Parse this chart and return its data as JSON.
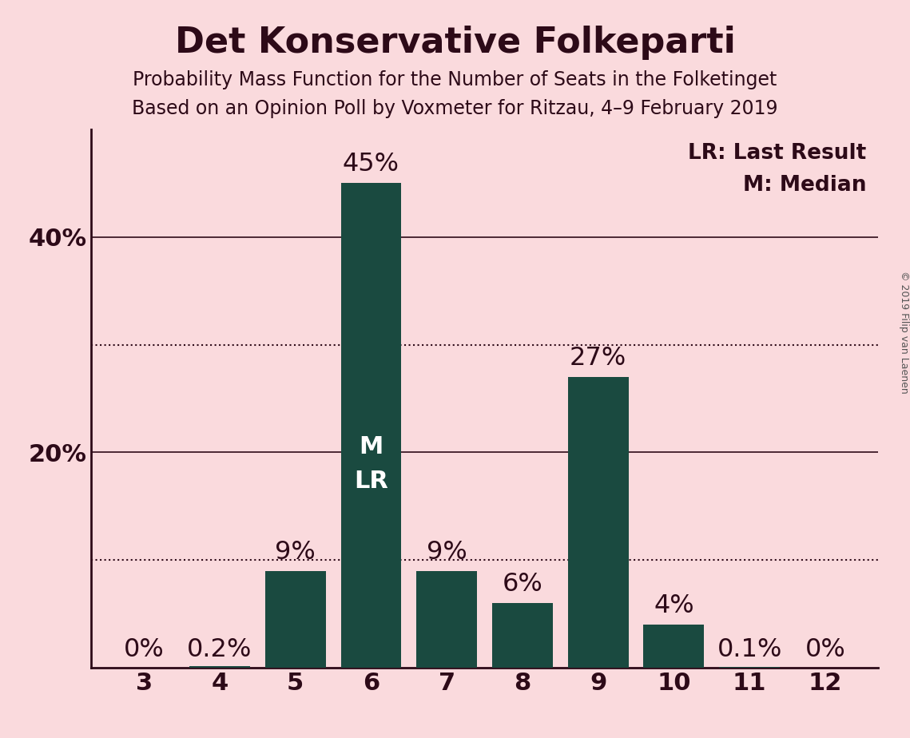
{
  "title": "Det Konservative Folkeparti",
  "subtitle1": "Probability Mass Function for the Number of Seats in the Folketinget",
  "subtitle2": "Based on an Opinion Poll by Voxmeter for Ritzau, 4–9 February 2019",
  "copyright": "© 2019 Filip van Laenen",
  "seats": [
    3,
    4,
    5,
    6,
    7,
    8,
    9,
    10,
    11,
    12
  ],
  "probabilities": [
    0.0,
    0.2,
    9.0,
    45.0,
    9.0,
    6.0,
    27.0,
    4.0,
    0.1,
    0.0
  ],
  "bar_labels": [
    "0%",
    "0.2%",
    "9%",
    "45%",
    "9%",
    "6%",
    "27%",
    "4%",
    "0.1%",
    "0%"
  ],
  "bar_color": "#1a4a40",
  "background_color": "#fadadd",
  "text_color": "#2d0a18",
  "bar_text_color": "#ffffff",
  "bar_annotation_seat": 6,
  "bar_annotation_text": "M\nLR",
  "legend_line1": "LR: Last Result",
  "legend_line2": "M: Median",
  "ylim": [
    0,
    50
  ],
  "ytick_labeled": [
    20,
    40
  ],
  "ytick_dotted": [
    10,
    30
  ],
  "title_fontsize": 32,
  "subtitle_fontsize": 17,
  "tick_fontsize": 22,
  "label_fontsize": 23,
  "legend_fontsize": 19,
  "annotation_fontsize": 22,
  "copyright_fontsize": 9
}
